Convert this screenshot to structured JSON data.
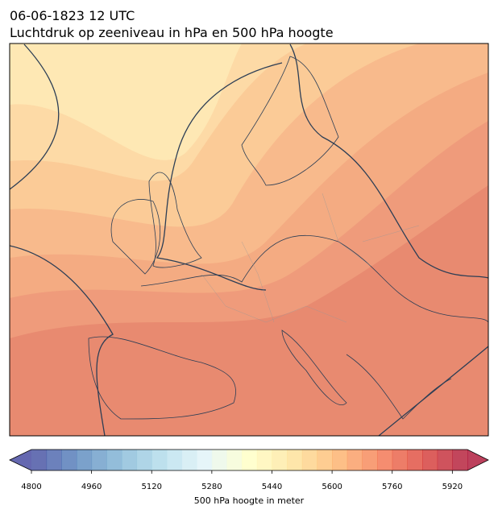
{
  "header": {
    "title": "06-06-1823 12 UTC",
    "subtitle": "Luchtdruk op zeeniveau in hPa en 500 hPa hoogte"
  },
  "colorbar": {
    "range": [
      4800,
      5960
    ],
    "level_step": 40,
    "ticks": [
      4800,
      4960,
      5120,
      5280,
      5440,
      5600,
      5760,
      5920
    ],
    "label": "500 hPa hoogte in meter",
    "colormap": "RdYlBu_r",
    "extend": "both"
  }
}
